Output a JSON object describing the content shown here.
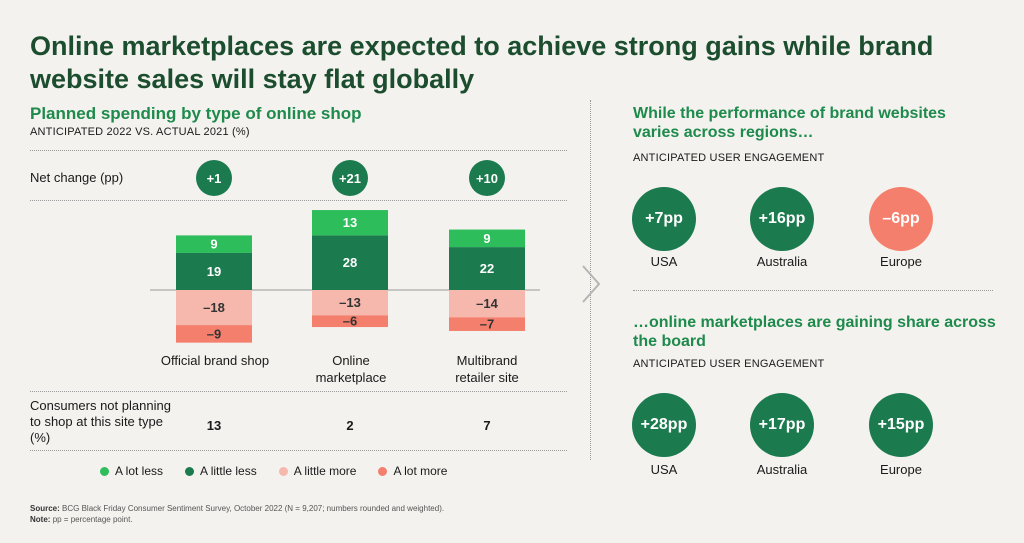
{
  "title": "Online marketplaces are expected to achieve strong gains while brand website sales will stay flat globally",
  "left": {
    "heading": "Planned spending by type of online shop",
    "subheading": "ANTICIPATED 2022 VS. ACTUAL 2021 (%)",
    "net_change_label": "Net change (pp)",
    "consumers_label": "Consumers not planning to shop at this site type (%)"
  },
  "chart_data": {
    "type": "bar",
    "stacked": "diverging",
    "title": "Planned spending by type of online shop",
    "subtitle": "ANTICIPATED 2022 VS. ACTUAL 2021 (%)",
    "categories": [
      "Official brand shop",
      "Online marketplace",
      "Multibrand retailer site"
    ],
    "series": [
      {
        "name": "A lot less",
        "color": "#2dbd5a",
        "values": [
          9,
          13,
          9
        ]
      },
      {
        "name": "A little less",
        "color": "#1b7a4e",
        "values": [
          19,
          28,
          22
        ]
      },
      {
        "name": "A little more",
        "color": "#f6b8ad",
        "values": [
          -18,
          -13,
          -14
        ]
      },
      {
        "name": "A lot more",
        "color": "#f47f6c",
        "values": [
          -9,
          -6,
          -7
        ]
      }
    ],
    "value_labels": [
      [
        "9",
        "19",
        "–18",
        "–9"
      ],
      [
        "13",
        "28",
        "–13",
        "–6"
      ],
      [
        "9",
        "22",
        "–14",
        "–7"
      ]
    ],
    "net_change": [
      "+1",
      "+21",
      "+10"
    ],
    "consumers_not_planning": [
      "13",
      "2",
      "7"
    ]
  },
  "legend": [
    {
      "label": "A lot less",
      "color": "#2dbd5a"
    },
    {
      "label": "A little less",
      "color": "#1b7a4e"
    },
    {
      "label": "A little more",
      "color": "#f6b8ad"
    },
    {
      "label": "A lot more",
      "color": "#f47f6c"
    }
  ],
  "source": {
    "source_label": "Source:",
    "source_text": "BCG Black Friday Consumer Sentiment Survey, October 2022 (N = 9,207; numbers rounded and weighted).",
    "note_label": "Note:",
    "note_text": "pp = percentage point."
  },
  "right": {
    "section1": {
      "heading": "While the performance of brand websites varies across regions…",
      "subheading": "ANTICIPATED USER ENGAGEMENT",
      "items": [
        {
          "value": "+7pp",
          "region": "USA",
          "color": "#1b7a4e"
        },
        {
          "value": "+16pp",
          "region": "Australia",
          "color": "#1b7a4e"
        },
        {
          "value": "–6pp",
          "region": "Europe",
          "color": "#f47f6c"
        }
      ]
    },
    "section2": {
      "heading": "…online marketplaces are gaining share across the board",
      "subheading": "ANTICIPATED USER ENGAGEMENT",
      "items": [
        {
          "value": "+28pp",
          "region": "USA",
          "color": "#1b7a4e"
        },
        {
          "value": "+17pp",
          "region": "Australia",
          "color": "#1b7a4e"
        },
        {
          "value": "+15pp",
          "region": "Europe",
          "color": "#1b7a4e"
        }
      ]
    }
  }
}
